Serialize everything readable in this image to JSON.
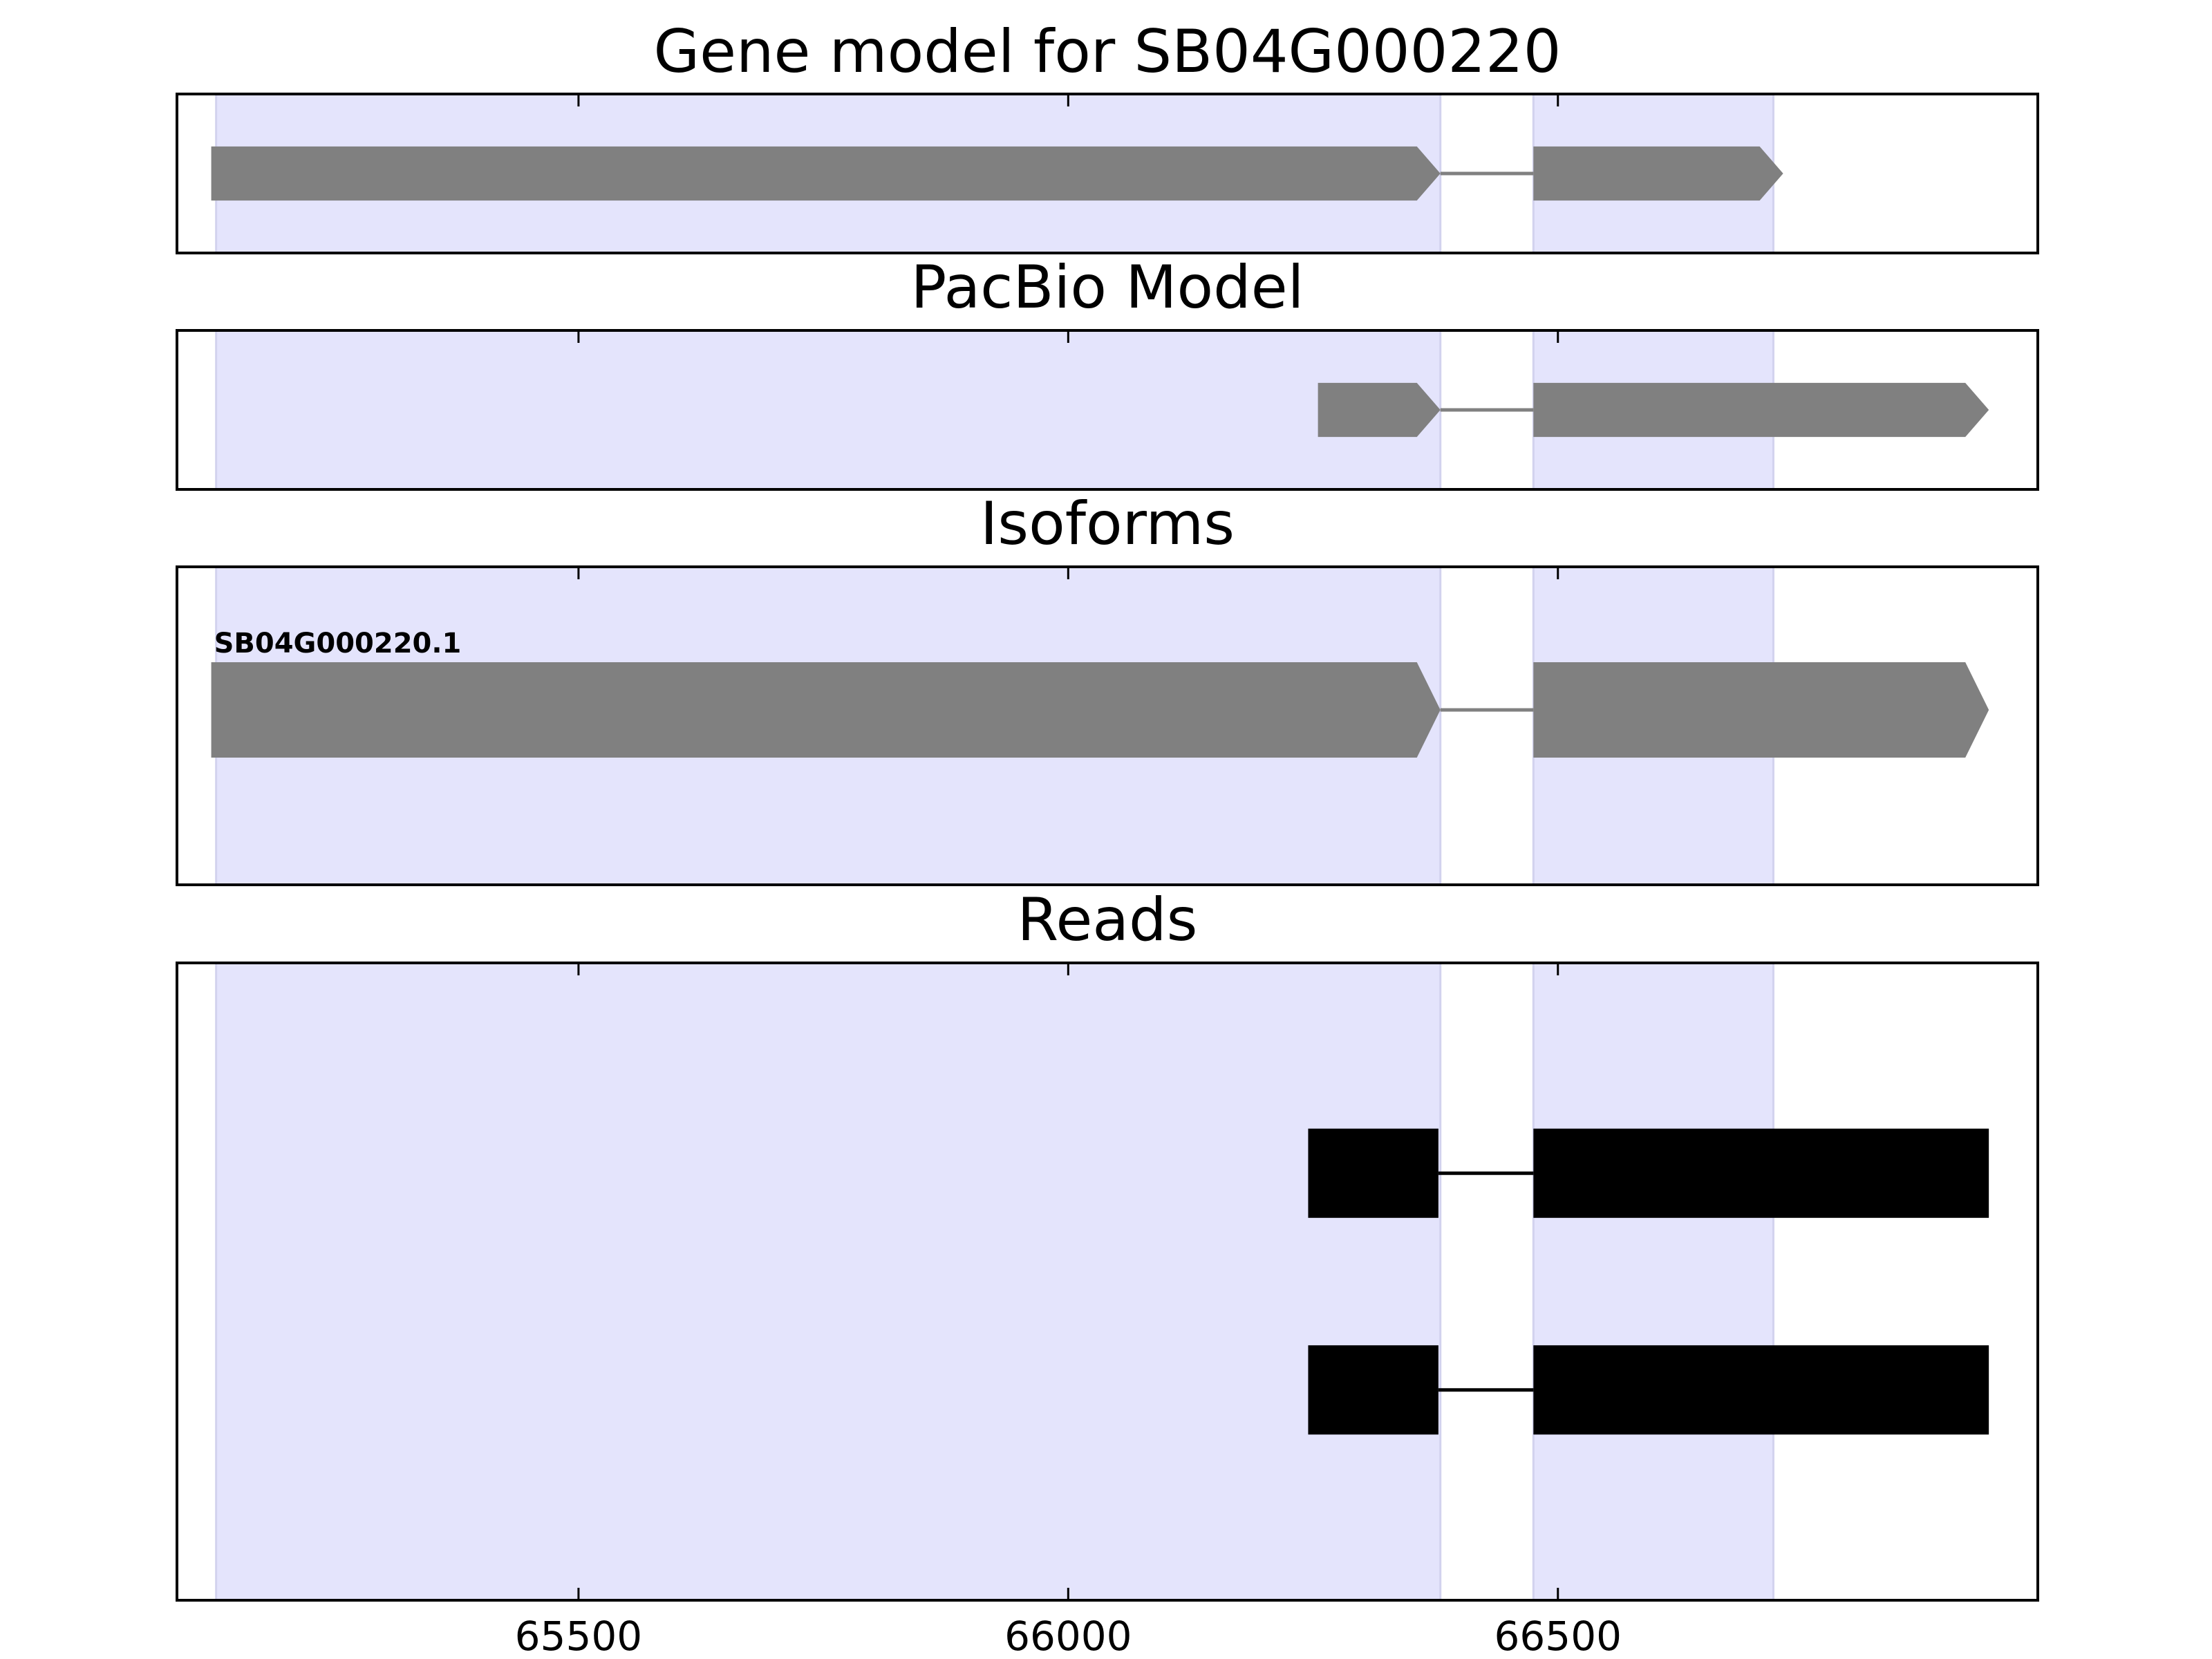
{
  "chart_data": {
    "type": "gene-track",
    "title": "Gene model for SB04G000220",
    "xlim": [
      65090,
      66990
    ],
    "x_ticks": [
      65500,
      66000,
      66500
    ],
    "x_tick_labels": [
      "65500",
      "66000",
      "66500"
    ],
    "highlight_regions": [
      [
        65130,
        66380
      ],
      [
        66475,
        66720
      ]
    ],
    "highlight_color": "#e4e4fc",
    "panels": [
      {
        "title": "Gene model for SB04G000220",
        "tracks": [
          {
            "label": "",
            "color": "#808080",
            "style": "arrow",
            "exons": [
              [
                65125,
                66380
              ],
              [
                66475,
                66730
              ]
            ],
            "y": 0.5,
            "height": 0.34
          }
        ]
      },
      {
        "title": "PacBio Model",
        "tracks": [
          {
            "label": "",
            "color": "#808080",
            "style": "arrow",
            "exons": [
              [
                66255,
                66380
              ],
              [
                66475,
                66940
              ]
            ],
            "y": 0.5,
            "height": 0.34
          }
        ]
      },
      {
        "title": "Isoforms",
        "tracks": [
          {
            "label": "SB04G000220.1",
            "color": "#808080",
            "style": "arrow",
            "exons": [
              [
                65125,
                66380
              ],
              [
                66475,
                66940
              ]
            ],
            "y": 0.45,
            "height": 0.3
          }
        ]
      },
      {
        "title": "Reads",
        "tracks": [
          {
            "label": "",
            "color": "#000000",
            "style": "box",
            "exons": [
              [
                66245,
                66378
              ],
              [
                66475,
                66940
              ]
            ],
            "y": 0.33,
            "height": 0.14
          },
          {
            "label": "",
            "color": "#000000",
            "style": "box",
            "exons": [
              [
                66245,
                66378
              ],
              [
                66475,
                66940
              ]
            ],
            "y": 0.67,
            "height": 0.14
          }
        ]
      }
    ]
  }
}
